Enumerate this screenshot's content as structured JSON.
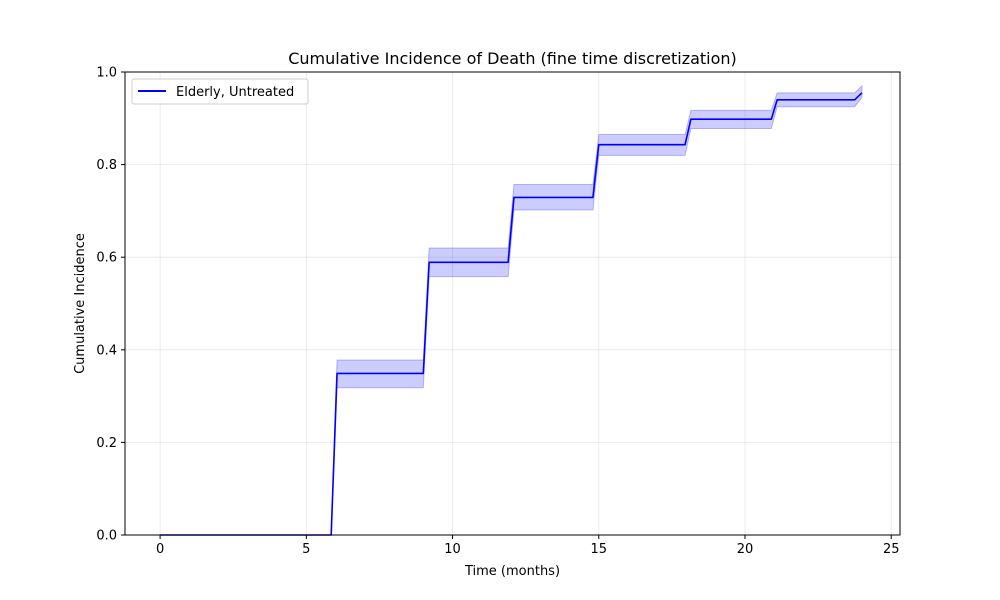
{
  "chart_data": {
    "type": "line",
    "title": "Cumulative Incidence of Death (fine time discretization)",
    "xlabel": "Time (months)",
    "ylabel": "Cumulative Incidence",
    "xlim": [
      -1.2,
      25.3
    ],
    "ylim": [
      0.0,
      1.0
    ],
    "x_ticks": [
      0,
      5,
      10,
      15,
      20,
      25
    ],
    "x_tick_labels": [
      "0",
      "5",
      "10",
      "15",
      "20",
      "25"
    ],
    "y_ticks": [
      0.0,
      0.2,
      0.4,
      0.6,
      0.8,
      1.0
    ],
    "y_tick_labels": [
      "0.0",
      "0.2",
      "0.4",
      "0.6",
      "0.8",
      "1.0"
    ],
    "grid": true,
    "legend_position": "top-left",
    "series": [
      {
        "name": "Elderly, Untreated",
        "color": "#0000ff",
        "band_color": "#0000ff",
        "x": [
          0.0,
          5.85,
          6.05,
          9.0,
          9.2,
          11.9,
          12.1,
          14.8,
          15.0,
          17.95,
          18.15,
          20.9,
          21.1,
          23.75,
          24.0
        ],
        "y": [
          0.0,
          0.0,
          0.349,
          0.349,
          0.589,
          0.589,
          0.729,
          0.729,
          0.843,
          0.843,
          0.898,
          0.898,
          0.94,
          0.94,
          0.955
        ],
        "lower": [
          0.0,
          0.0,
          0.318,
          0.318,
          0.558,
          0.558,
          0.702,
          0.702,
          0.82,
          0.82,
          0.878,
          0.878,
          0.925,
          0.925,
          0.945
        ],
        "upper": [
          0.0,
          0.0,
          0.378,
          0.378,
          0.62,
          0.62,
          0.757,
          0.757,
          0.865,
          0.865,
          0.917,
          0.917,
          0.955,
          0.955,
          0.97
        ]
      }
    ]
  }
}
